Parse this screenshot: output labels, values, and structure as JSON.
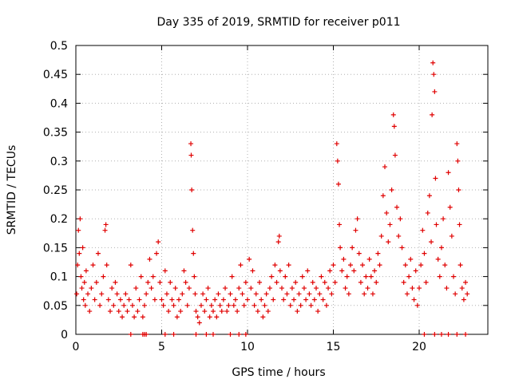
{
  "chart_data": {
    "type": "scatter",
    "title": "Day 335 of 2019, SRMTID for receiver p011",
    "xlabel": "GPS time / hours",
    "ylabel": "SRMTID / TECUs",
    "xlim": [
      0,
      24
    ],
    "ylim": [
      0,
      0.5
    ],
    "xticks": [
      0,
      5,
      10,
      15,
      20
    ],
    "xtick_labels": [
      "0",
      "5",
      "10",
      "15",
      "20"
    ],
    "yticks": [
      0,
      0.05,
      0.1,
      0.15,
      0.2,
      0.25,
      0.3,
      0.35,
      0.4,
      0.45,
      0.5
    ],
    "ytick_labels": [
      "0",
      "0.05",
      "0.1",
      "0.15",
      "0.2",
      "0.25",
      "0.3",
      "0.35",
      "0.4",
      "0.45",
      "0.5"
    ],
    "grid": true,
    "marker": "+",
    "marker_color": "#e00000",
    "series": [
      {
        "name": "SRMTID",
        "points": [
          [
            0.05,
            0.07
          ],
          [
            0.1,
            0.12
          ],
          [
            0.15,
            0.18
          ],
          [
            0.2,
            0.14
          ],
          [
            0.25,
            0.2
          ],
          [
            0.3,
            0.1
          ],
          [
            0.35,
            0.08
          ],
          [
            0.4,
            0.15
          ],
          [
            0.45,
            0.06
          ],
          [
            0.5,
            0.09
          ],
          [
            0.55,
            0.05
          ],
          [
            0.6,
            0.11
          ],
          [
            0.7,
            0.07
          ],
          [
            0.8,
            0.04
          ],
          [
            0.9,
            0.08
          ],
          [
            1.0,
            0.12
          ],
          [
            1.1,
            0.06
          ],
          [
            1.2,
            0.09
          ],
          [
            1.3,
            0.14
          ],
          [
            1.4,
            0.05
          ],
          [
            1.5,
            0.07
          ],
          [
            1.6,
            0.1
          ],
          [
            1.7,
            0.18
          ],
          [
            1.75,
            0.19
          ],
          [
            1.8,
            0.12
          ],
          [
            1.9,
            0.06
          ],
          [
            2.0,
            0.04
          ],
          [
            2.1,
            0.08
          ],
          [
            2.2,
            0.05
          ],
          [
            2.3,
            0.09
          ],
          [
            2.4,
            0.07
          ],
          [
            2.5,
            0.04
          ],
          [
            2.6,
            0.06
          ],
          [
            2.7,
            0.03
          ],
          [
            2.8,
            0.05
          ],
          [
            2.9,
            0.07
          ],
          [
            3.0,
            0.04
          ],
          [
            3.1,
            0.06
          ],
          [
            3.2,
            0.12
          ],
          [
            3.3,
            0.05
          ],
          [
            3.4,
            0.03
          ],
          [
            3.5,
            0.08
          ],
          [
            3.6,
            0.04
          ],
          [
            3.7,
            0.06
          ],
          [
            3.8,
            0.1
          ],
          [
            3.9,
            0.03
          ],
          [
            4.0,
            0.05
          ],
          [
            4.1,
            0.07
          ],
          [
            4.2,
            0.09
          ],
          [
            4.3,
            0.13
          ],
          [
            4.4,
            0.08
          ],
          [
            4.5,
            0.1
          ],
          [
            4.6,
            0.06
          ],
          [
            4.7,
            0.14
          ],
          [
            4.8,
            0.16
          ],
          [
            4.9,
            0.09
          ],
          [
            5.0,
            0.06
          ],
          [
            5.1,
            0.05
          ],
          [
            5.2,
            0.11
          ],
          [
            5.3,
            0.07
          ],
          [
            5.4,
            0.04
          ],
          [
            5.5,
            0.09
          ],
          [
            5.6,
            0.06
          ],
          [
            5.7,
            0.05
          ],
          [
            5.8,
            0.08
          ],
          [
            5.9,
            0.03
          ],
          [
            6.0,
            0.06
          ],
          [
            6.1,
            0.04
          ],
          [
            6.2,
            0.07
          ],
          [
            6.3,
            0.11
          ],
          [
            6.4,
            0.09
          ],
          [
            6.5,
            0.05
          ],
          [
            6.6,
            0.08
          ],
          [
            6.7,
            0.33
          ],
          [
            6.72,
            0.31
          ],
          [
            6.75,
            0.25
          ],
          [
            6.8,
            0.18
          ],
          [
            6.85,
            0.14
          ],
          [
            6.9,
            0.1
          ],
          [
            6.95,
            0.07
          ],
          [
            7.0,
            0.04
          ],
          [
            7.1,
            0.03
          ],
          [
            7.2,
            0.02
          ],
          [
            7.3,
            0.05
          ],
          [
            7.4,
            0.07
          ],
          [
            7.5,
            0.04
          ],
          [
            7.6,
            0.06
          ],
          [
            7.7,
            0.08
          ],
          [
            7.8,
            0.03
          ],
          [
            7.9,
            0.05
          ],
          [
            8.0,
            0.04
          ],
          [
            8.1,
            0.06
          ],
          [
            8.2,
            0.03
          ],
          [
            8.3,
            0.07
          ],
          [
            8.4,
            0.05
          ],
          [
            8.5,
            0.04
          ],
          [
            8.6,
            0.06
          ],
          [
            8.7,
            0.08
          ],
          [
            8.8,
            0.04
          ],
          [
            8.9,
            0.05
          ],
          [
            9.0,
            0.07
          ],
          [
            9.1,
            0.1
          ],
          [
            9.2,
            0.05
          ],
          [
            9.3,
            0.06
          ],
          [
            9.4,
            0.04
          ],
          [
            9.5,
            0.08
          ],
          [
            9.6,
            0.12
          ],
          [
            9.7,
            0.07
          ],
          [
            9.8,
            0.05
          ],
          [
            9.9,
            0.09
          ],
          [
            10.0,
            0.06
          ],
          [
            10.1,
            0.13
          ],
          [
            10.2,
            0.08
          ],
          [
            10.3,
            0.11
          ],
          [
            10.4,
            0.05
          ],
          [
            10.5,
            0.07
          ],
          [
            10.6,
            0.04
          ],
          [
            10.7,
            0.09
          ],
          [
            10.8,
            0.06
          ],
          [
            10.9,
            0.03
          ],
          [
            11.0,
            0.05
          ],
          [
            11.1,
            0.07
          ],
          [
            11.2,
            0.04
          ],
          [
            11.3,
            0.08
          ],
          [
            11.4,
            0.1
          ],
          [
            11.5,
            0.06
          ],
          [
            11.6,
            0.12
          ],
          [
            11.7,
            0.09
          ],
          [
            11.8,
            0.16
          ],
          [
            11.85,
            0.17
          ],
          [
            11.9,
            0.11
          ],
          [
            12.0,
            0.08
          ],
          [
            12.1,
            0.06
          ],
          [
            12.2,
            0.1
          ],
          [
            12.3,
            0.07
          ],
          [
            12.4,
            0.12
          ],
          [
            12.5,
            0.05
          ],
          [
            12.6,
            0.08
          ],
          [
            12.7,
            0.06
          ],
          [
            12.8,
            0.09
          ],
          [
            12.9,
            0.04
          ],
          [
            13.0,
            0.07
          ],
          [
            13.1,
            0.05
          ],
          [
            13.2,
            0.1
          ],
          [
            13.3,
            0.08
          ],
          [
            13.4,
            0.06
          ],
          [
            13.5,
            0.11
          ],
          [
            13.6,
            0.07
          ],
          [
            13.7,
            0.05
          ],
          [
            13.8,
            0.09
          ],
          [
            13.9,
            0.06
          ],
          [
            14.0,
            0.08
          ],
          [
            14.1,
            0.04
          ],
          [
            14.2,
            0.07
          ],
          [
            14.3,
            0.1
          ],
          [
            14.4,
            0.06
          ],
          [
            14.5,
            0.09
          ],
          [
            14.6,
            0.05
          ],
          [
            14.7,
            0.08
          ],
          [
            14.8,
            0.11
          ],
          [
            14.9,
            0.07
          ],
          [
            15.0,
            0.12
          ],
          [
            15.1,
            0.09
          ],
          [
            15.2,
            0.33
          ],
          [
            15.25,
            0.3
          ],
          [
            15.3,
            0.26
          ],
          [
            15.35,
            0.19
          ],
          [
            15.4,
            0.15
          ],
          [
            15.5,
            0.11
          ],
          [
            15.6,
            0.13
          ],
          [
            15.7,
            0.08
          ],
          [
            15.8,
            0.1
          ],
          [
            15.9,
            0.07
          ],
          [
            16.0,
            0.12
          ],
          [
            16.1,
            0.15
          ],
          [
            16.2,
            0.11
          ],
          [
            16.3,
            0.18
          ],
          [
            16.4,
            0.2
          ],
          [
            16.5,
            0.14
          ],
          [
            16.6,
            0.09
          ],
          [
            16.7,
            0.12
          ],
          [
            16.8,
            0.07
          ],
          [
            16.9,
            0.1
          ],
          [
            17.0,
            0.08
          ],
          [
            17.1,
            0.13
          ],
          [
            17.2,
            0.1
          ],
          [
            17.3,
            0.07
          ],
          [
            17.4,
            0.11
          ],
          [
            17.5,
            0.09
          ],
          [
            17.6,
            0.14
          ],
          [
            17.7,
            0.12
          ],
          [
            17.8,
            0.17
          ],
          [
            17.9,
            0.24
          ],
          [
            18.0,
            0.29
          ],
          [
            18.1,
            0.21
          ],
          [
            18.2,
            0.16
          ],
          [
            18.3,
            0.19
          ],
          [
            18.4,
            0.25
          ],
          [
            18.5,
            0.38
          ],
          [
            18.55,
            0.36
          ],
          [
            18.6,
            0.31
          ],
          [
            18.7,
            0.22
          ],
          [
            18.8,
            0.17
          ],
          [
            18.9,
            0.2
          ],
          [
            19.0,
            0.15
          ],
          [
            19.1,
            0.09
          ],
          [
            19.2,
            0.12
          ],
          [
            19.3,
            0.07
          ],
          [
            19.4,
            0.1
          ],
          [
            19.5,
            0.13
          ],
          [
            19.6,
            0.08
          ],
          [
            19.7,
            0.06
          ],
          [
            19.8,
            0.11
          ],
          [
            19.9,
            0.05
          ],
          [
            20.0,
            0.08
          ],
          [
            20.1,
            0.12
          ],
          [
            20.2,
            0.18
          ],
          [
            20.3,
            0.14
          ],
          [
            20.4,
            0.09
          ],
          [
            20.5,
            0.21
          ],
          [
            20.6,
            0.24
          ],
          [
            20.7,
            0.16
          ],
          [
            20.75,
            0.38
          ],
          [
            20.8,
            0.47
          ],
          [
            20.85,
            0.45
          ],
          [
            20.9,
            0.42
          ],
          [
            20.95,
            0.27
          ],
          [
            21.0,
            0.19
          ],
          [
            21.1,
            0.13
          ],
          [
            21.2,
            0.1
          ],
          [
            21.3,
            0.15
          ],
          [
            21.4,
            0.2
          ],
          [
            21.5,
            0.12
          ],
          [
            21.6,
            0.08
          ],
          [
            21.7,
            0.28
          ],
          [
            21.8,
            0.22
          ],
          [
            21.9,
            0.17
          ],
          [
            22.0,
            0.1
          ],
          [
            22.1,
            0.07
          ],
          [
            22.2,
            0.33
          ],
          [
            22.25,
            0.3
          ],
          [
            22.3,
            0.25
          ],
          [
            22.35,
            0.19
          ],
          [
            22.4,
            0.12
          ],
          [
            22.5,
            0.08
          ],
          [
            22.6,
            0.06
          ],
          [
            22.7,
            0.09
          ],
          [
            22.8,
            0.07
          ],
          [
            3.2,
            0.0
          ],
          [
            3.9,
            0.0
          ],
          [
            4.0,
            0.0
          ],
          [
            4.1,
            0.0
          ],
          [
            5.2,
            0.0
          ],
          [
            5.7,
            0.0
          ],
          [
            7.0,
            0.0
          ],
          [
            7.6,
            0.0
          ],
          [
            8.0,
            0.0
          ],
          [
            9.0,
            0.0
          ],
          [
            9.5,
            0.0
          ],
          [
            9.9,
            0.0
          ],
          [
            20.3,
            0.0
          ],
          [
            20.9,
            0.0
          ],
          [
            21.3,
            0.0
          ],
          [
            21.7,
            0.0
          ],
          [
            22.2,
            0.0
          ],
          [
            22.7,
            0.0
          ]
        ]
      }
    ]
  }
}
